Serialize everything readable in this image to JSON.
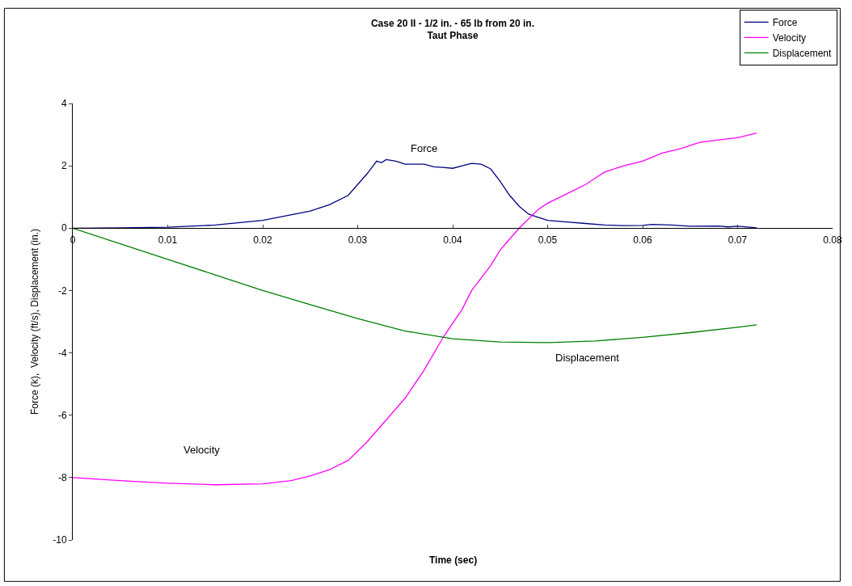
{
  "chart_data": {
    "type": "line",
    "title": "Case 20 II - 1/2 in. - 65 lb from 20 in.",
    "subtitle": "Taut Phase",
    "xlabel": "Time (sec)",
    "ylabel": "Force (k),  Velocity (ft/s), Displacement (in.)",
    "xlim": [
      0,
      0.08
    ],
    "xticks": [
      0,
      0.01,
      0.02,
      0.03,
      0.04,
      0.05,
      0.06,
      0.07,
      0.08
    ],
    "ylim": [
      -10,
      4
    ],
    "yticks": [
      -10,
      -8,
      -6,
      -4,
      -2,
      0,
      2,
      4
    ],
    "legend": "top right",
    "marker": "none",
    "line_style": "solid",
    "series": [
      {
        "name": "Force",
        "color": "#000080",
        "x": [
          0,
          0.005,
          0.01,
          0.015,
          0.02,
          0.025,
          0.027,
          0.029,
          0.031,
          0.032,
          0.0325,
          0.033,
          0.034,
          0.035,
          0.037,
          0.038,
          0.039,
          0.04,
          0.041,
          0.042,
          0.043,
          0.044,
          0.045,
          0.046,
          0.047,
          0.048,
          0.049,
          0.05,
          0.052,
          0.054,
          0.056,
          0.058,
          0.06,
          0.061,
          0.063,
          0.065,
          0.068,
          0.069,
          0.07,
          0.072
        ],
        "values": [
          0,
          0.01,
          0.03,
          0.1,
          0.25,
          0.55,
          0.75,
          1.05,
          1.75,
          2.15,
          2.1,
          2.2,
          2.15,
          2.05,
          2.05,
          1.97,
          1.95,
          1.92,
          2.0,
          2.08,
          2.05,
          1.9,
          1.5,
          1.05,
          0.7,
          0.45,
          0.35,
          0.25,
          0.2,
          0.15,
          0.1,
          0.08,
          0.09,
          0.12,
          0.1,
          0.06,
          0.07,
          0.04,
          0.06,
          0.01
        ]
      },
      {
        "name": "Velocity",
        "color": "#ff00ff",
        "x": [
          0,
          0.005,
          0.01,
          0.015,
          0.02,
          0.023,
          0.025,
          0.027,
          0.029,
          0.031,
          0.033,
          0.035,
          0.037,
          0.039,
          0.041,
          0.042,
          0.044,
          0.045,
          0.046,
          0.047,
          0.048,
          0.049,
          0.05,
          0.052,
          0.054,
          0.055,
          0.056,
          0.058,
          0.06,
          0.062,
          0.064,
          0.066,
          0.068,
          0.07,
          0.072
        ],
        "values": [
          -8.0,
          -8.1,
          -8.18,
          -8.23,
          -8.2,
          -8.1,
          -7.95,
          -7.75,
          -7.45,
          -6.85,
          -6.15,
          -5.45,
          -4.55,
          -3.5,
          -2.6,
          -2.0,
          -1.2,
          -0.7,
          -0.35,
          0.0,
          0.3,
          0.6,
          0.8,
          1.1,
          1.4,
          1.6,
          1.8,
          2.0,
          2.15,
          2.4,
          2.55,
          2.75,
          2.83,
          2.9,
          3.05
        ]
      },
      {
        "name": "Displacement",
        "color": "#008000",
        "x": [
          0,
          0.005,
          0.01,
          0.015,
          0.02,
          0.025,
          0.03,
          0.035,
          0.04,
          0.045,
          0.05,
          0.055,
          0.06,
          0.065,
          0.07,
          0.072
        ],
        "values": [
          0,
          -0.5,
          -1.0,
          -1.5,
          -2.0,
          -2.45,
          -2.9,
          -3.3,
          -3.55,
          -3.65,
          -3.67,
          -3.62,
          -3.5,
          -3.35,
          -3.18,
          -3.1
        ]
      }
    ],
    "annotations": [
      "Force",
      "Velocity",
      "Displacement"
    ]
  }
}
